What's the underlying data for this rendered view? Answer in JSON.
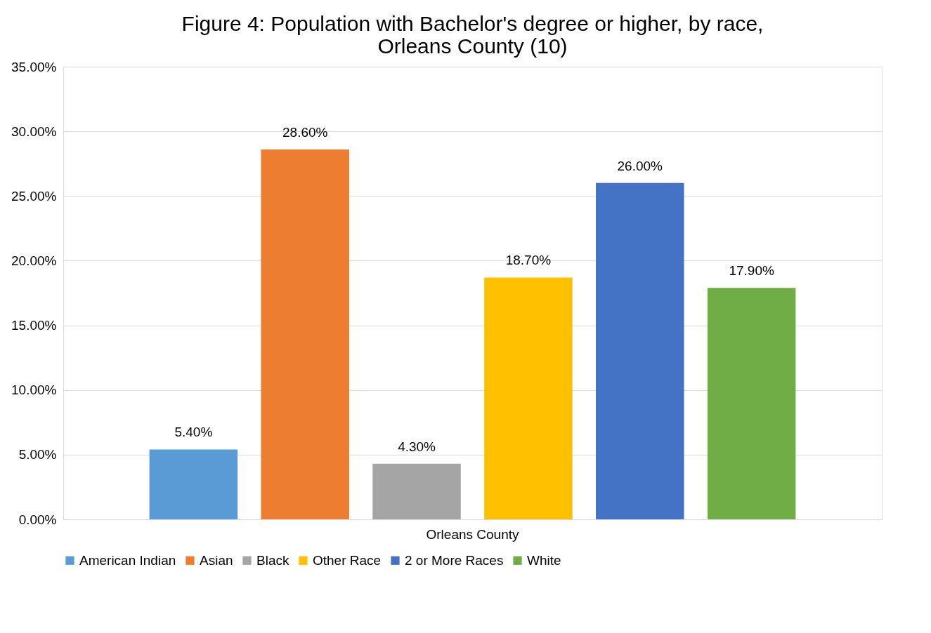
{
  "chart_data": {
    "type": "bar",
    "title": "Figure 4: Population with Bachelor's degree or higher, by race, Orleans County (10)",
    "categories": [
      "Orleans County"
    ],
    "series": [
      {
        "name": "American Indian",
        "color": "#5b9bd5",
        "values": [
          5.4
        ]
      },
      {
        "name": "Asian",
        "color": "#ed7d31",
        "values": [
          28.6
        ]
      },
      {
        "name": "Black",
        "color": "#a5a5a5",
        "values": [
          4.3
        ]
      },
      {
        "name": "Other Race",
        "color": "#ffc000",
        "values": [
          18.7
        ]
      },
      {
        "name": "2 or More Races",
        "color": "#4472c4",
        "values": [
          26.0
        ]
      },
      {
        "name": "White",
        "color": "#70ad47",
        "values": [
          17.9
        ]
      }
    ],
    "value_labels": [
      "5.40%",
      "28.60%",
      "4.30%",
      "18.70%",
      "26.00%",
      "17.90%"
    ],
    "ylim": [
      0,
      35
    ],
    "yticks": [
      {
        "value": 0,
        "label": "0.00%"
      },
      {
        "value": 5,
        "label": "5.00%"
      },
      {
        "value": 10,
        "label": "10.00%"
      },
      {
        "value": 15,
        "label": "15.00%"
      },
      {
        "value": 20,
        "label": "20.00%"
      },
      {
        "value": 25,
        "label": "25.00%"
      },
      {
        "value": 30,
        "label": "30.00%"
      },
      {
        "value": 35,
        "label": "35.00%"
      }
    ],
    "grid": "y",
    "legend": "bottom"
  }
}
